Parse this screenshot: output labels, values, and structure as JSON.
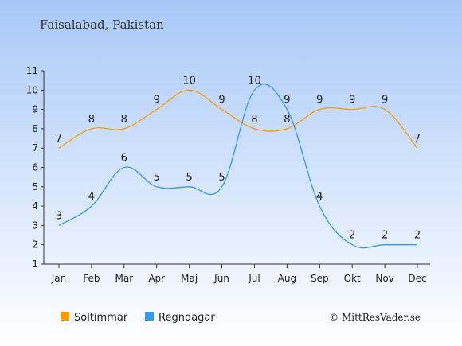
{
  "chart_data": {
    "type": "line",
    "title": "Faisalabad, Pakistan",
    "categories": [
      "Jan",
      "Feb",
      "Mar",
      "Apr",
      "Maj",
      "Jun",
      "Jul",
      "Aug",
      "Sep",
      "Okt",
      "Nov",
      "Dec"
    ],
    "series": [
      {
        "name": "Soltimmar",
        "color": "#ff9900",
        "values": [
          7,
          8,
          8,
          9,
          10,
          9,
          8,
          8,
          9,
          9,
          9,
          7
        ]
      },
      {
        "name": "Regndagar",
        "color": "#3399ee",
        "values": [
          3,
          4,
          6,
          5,
          5,
          5,
          10,
          9,
          4,
          2,
          2,
          2
        ]
      }
    ],
    "ylim": [
      1,
      11
    ],
    "yticks": [
      1,
      2,
      3,
      4,
      5,
      6,
      7,
      8,
      9,
      10,
      11
    ],
    "xlabel": "",
    "ylabel": "",
    "legend_position": "bottom-left",
    "grid": false,
    "credit": "© MittResVader.se"
  }
}
